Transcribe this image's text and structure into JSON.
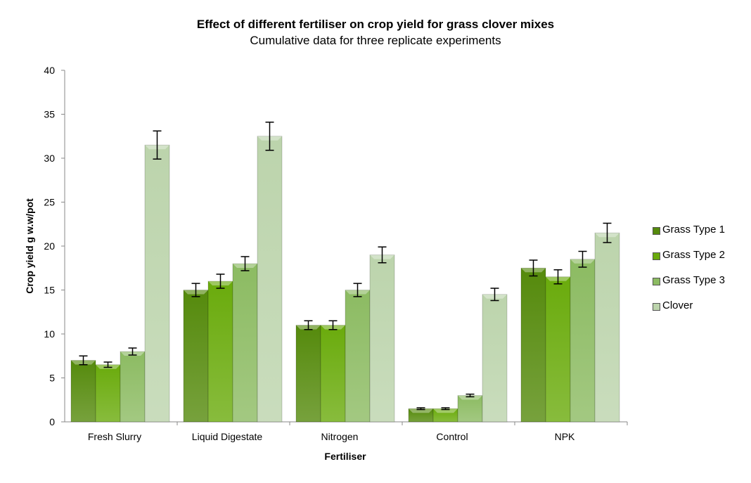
{
  "chart_data": {
    "type": "bar",
    "title": "Effect of different fertiliser on crop yield for grass clover mixes",
    "subtitle": "Cumulative data for three replicate experiments",
    "xlabel": "Fertiliser",
    "ylabel": "Crop yield g w.w/pot",
    "ylim": [
      0,
      40
    ],
    "yticks": [
      0,
      5,
      10,
      15,
      20,
      25,
      30,
      35,
      40
    ],
    "grid": false,
    "legend_position": "right",
    "categories": [
      "Fresh Slurry",
      "Liquid Digestate",
      "Nitrogen",
      "Control",
      "NPK"
    ],
    "series": [
      {
        "name": "Grass Type 1",
        "color": "#558a0c",
        "values": [
          7,
          15,
          11,
          1.5,
          17.5
        ],
        "errors": [
          0.5,
          0.75,
          0.5,
          0.1,
          0.9
        ]
      },
      {
        "name": "Grass Type 2",
        "color": "#6aab0c",
        "values": [
          6.5,
          16,
          11,
          1.5,
          16.5
        ],
        "errors": [
          0.3,
          0.8,
          0.5,
          0.1,
          0.8
        ]
      },
      {
        "name": "Grass Type 3",
        "color": "#8cbb62",
        "values": [
          8,
          18,
          15,
          3,
          18.5
        ],
        "errors": [
          0.4,
          0.8,
          0.75,
          0.15,
          0.9
        ]
      },
      {
        "name": "Clover",
        "color": "#bcd4ac",
        "values": [
          31.5,
          32.5,
          19,
          14.5,
          21.5
        ],
        "errors": [
          1.6,
          1.6,
          0.9,
          0.7,
          1.1
        ]
      }
    ]
  }
}
